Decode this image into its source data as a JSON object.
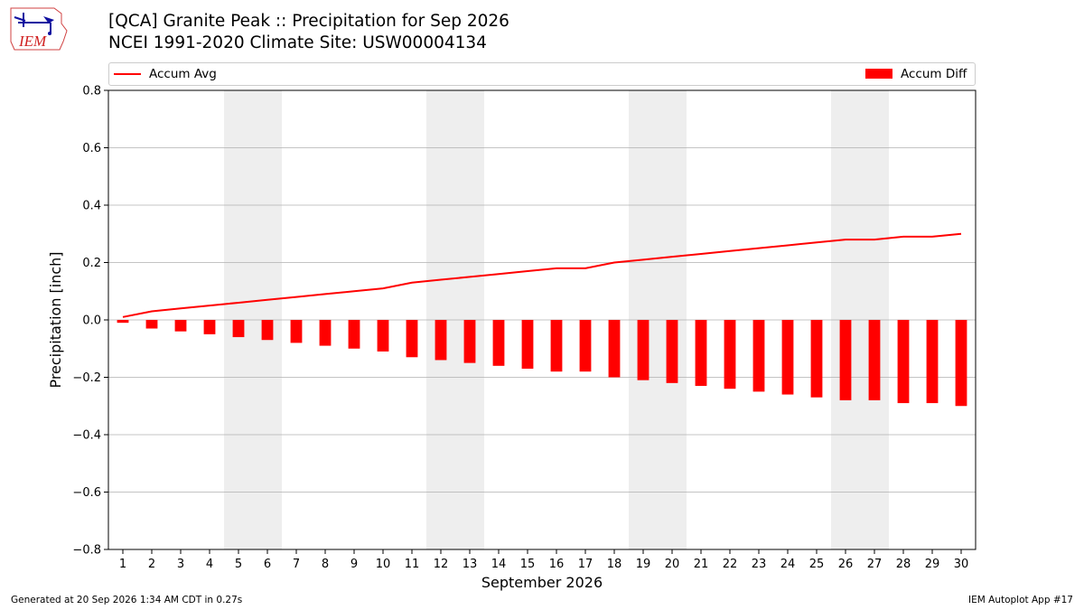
{
  "header": {
    "logo_text": "IEM",
    "title_line1": "[QCA] Granite Peak :: Precipitation for Sep 2026",
    "title_line2": "NCEI 1991-2020 Climate Site: USW00004134"
  },
  "footer": {
    "generated": "Generated at 20 Sep 2026 1:34 AM CDT in 0.27s",
    "app": "IEM Autoplot App #17"
  },
  "colors": {
    "series": "#ff0000",
    "weekend": "#eeeeee",
    "grid": "#b0b0b0"
  },
  "chart_data": {
    "type": "bar",
    "xlabel": "September 2026",
    "ylabel": "Precipitation [inch]",
    "ylim": [
      -0.8,
      0.8
    ],
    "yticks": [
      "−0.8",
      "−0.6",
      "−0.4",
      "−0.2",
      "0.0",
      "0.2",
      "0.4",
      "0.6",
      "0.8"
    ],
    "ytick_values": [
      -0.8,
      -0.6,
      -0.4,
      -0.2,
      0.0,
      0.2,
      0.4,
      0.6,
      0.8
    ],
    "grid": "horizontal",
    "legend_position": "top",
    "categories": [
      "1",
      "2",
      "3",
      "4",
      "5",
      "6",
      "7",
      "8",
      "9",
      "10",
      "11",
      "12",
      "13",
      "14",
      "15",
      "16",
      "17",
      "18",
      "19",
      "20",
      "21",
      "22",
      "23",
      "24",
      "25",
      "26",
      "27",
      "28",
      "29",
      "30"
    ],
    "weekend_days": [
      5,
      6,
      12,
      13,
      19,
      20,
      26,
      27
    ],
    "series": [
      {
        "name": "Accum Avg",
        "kind": "line",
        "values": [
          0.01,
          0.03,
          0.04,
          0.05,
          0.06,
          0.07,
          0.08,
          0.09,
          0.1,
          0.11,
          0.13,
          0.14,
          0.15,
          0.16,
          0.17,
          0.18,
          0.18,
          0.2,
          0.21,
          0.22,
          0.23,
          0.24,
          0.25,
          0.26,
          0.27,
          0.28,
          0.28,
          0.29,
          0.29,
          0.3
        ]
      },
      {
        "name": "Accum Diff",
        "kind": "bar",
        "values": [
          -0.01,
          -0.03,
          -0.04,
          -0.05,
          -0.06,
          -0.07,
          -0.08,
          -0.09,
          -0.1,
          -0.11,
          -0.13,
          -0.14,
          -0.15,
          -0.16,
          -0.17,
          -0.18,
          -0.18,
          -0.2,
          -0.21,
          -0.22,
          -0.23,
          -0.24,
          -0.25,
          -0.26,
          -0.27,
          -0.28,
          -0.28,
          -0.29,
          -0.29,
          -0.3
        ]
      }
    ]
  }
}
